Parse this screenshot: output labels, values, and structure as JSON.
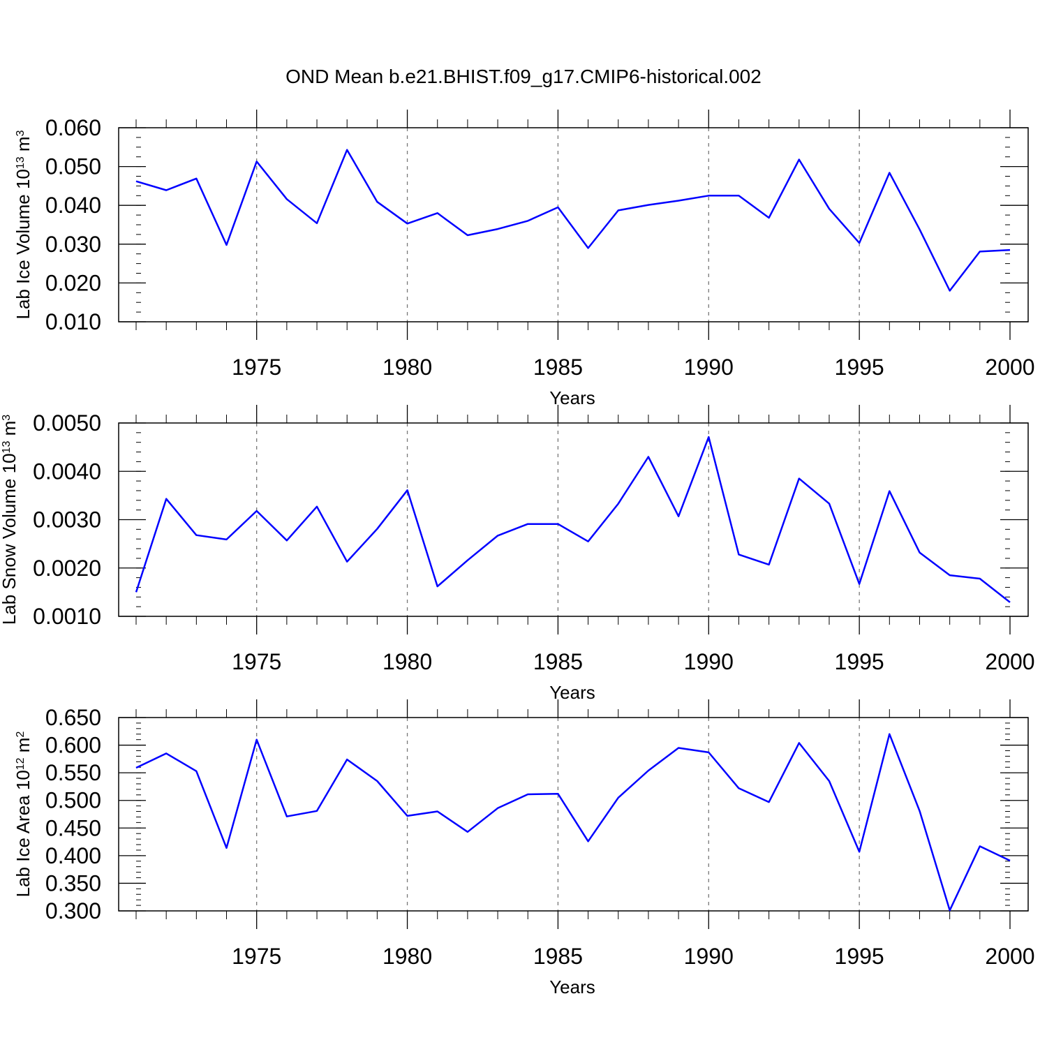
{
  "title": "OND Mean b.e21.BHIST.f09_g17.CMIP6-historical.002",
  "chart_data": [
    {
      "type": "line",
      "ylabel": {
        "text": "Lab Ice Volume 10",
        "exp": "13",
        "unit": " m",
        "unit_exp": "3"
      },
      "xlabel": "Years",
      "xlim": [
        1971,
        2000
      ],
      "ylim": [
        0.01,
        0.06
      ],
      "yticks": [
        0.01,
        0.02,
        0.03,
        0.04,
        0.05,
        0.06
      ],
      "ytick_labels": [
        "0.010",
        "0.020",
        "0.030",
        "0.040",
        "0.050",
        "0.060"
      ],
      "yminor_step": 0.0025,
      "xticks": [
        1975,
        1980,
        1985,
        1990,
        1995,
        2000
      ],
      "xtick_labels": [
        "1975",
        "1980",
        "1985",
        "1990",
        "1995",
        "2000"
      ],
      "grid": "dashed vertical at labeled years",
      "color": "#0000ff",
      "x": [
        1971,
        1972,
        1973,
        1974,
        1975,
        1976,
        1977,
        1978,
        1979,
        1980,
        1981,
        1982,
        1983,
        1984,
        1985,
        1986,
        1987,
        1988,
        1989,
        1990,
        1991,
        1992,
        1993,
        1994,
        1995,
        1996,
        1997,
        1998,
        1999,
        2000
      ],
      "y": [
        0.0462,
        0.0439,
        0.0469,
        0.0298,
        0.0513,
        0.0416,
        0.0354,
        0.0543,
        0.0409,
        0.0353,
        0.038,
        0.0323,
        0.0339,
        0.036,
        0.0395,
        0.029,
        0.0387,
        0.0401,
        0.0412,
        0.0425,
        0.0425,
        0.0368,
        0.0518,
        0.0391,
        0.0303,
        0.0484,
        0.0338,
        0.018,
        0.0281,
        0.0285
      ]
    },
    {
      "type": "line",
      "ylabel": {
        "text": "Lab Snow Volume 10",
        "exp": "13",
        "unit": " m",
        "unit_exp": "3"
      },
      "xlabel": "Years",
      "xlim": [
        1971,
        2000
      ],
      "ylim": [
        0.001,
        0.005
      ],
      "yticks": [
        0.001,
        0.002,
        0.003,
        0.004,
        0.005
      ],
      "ytick_labels": [
        "0.0010",
        "0.0020",
        "0.0030",
        "0.0040",
        "0.0050"
      ],
      "yminor_step": 0.0002,
      "xticks": [
        1975,
        1980,
        1985,
        1990,
        1995,
        2000
      ],
      "xtick_labels": [
        "1975",
        "1980",
        "1985",
        "1990",
        "1995",
        "2000"
      ],
      "grid": "dashed vertical at labeled years",
      "color": "#0000ff",
      "x": [
        1971,
        1972,
        1973,
        1974,
        1975,
        1976,
        1977,
        1978,
        1979,
        1980,
        1981,
        1982,
        1983,
        1984,
        1985,
        1986,
        1987,
        1988,
        1989,
        1990,
        1991,
        1992,
        1993,
        1994,
        1995,
        1996,
        1997,
        1998,
        1999,
        2000
      ],
      "y": [
        0.0015,
        0.00343,
        0.00268,
        0.00259,
        0.00318,
        0.00257,
        0.00327,
        0.00213,
        0.00281,
        0.00361,
        0.00162,
        0.00216,
        0.00267,
        0.00291,
        0.00291,
        0.00255,
        0.00333,
        0.0043,
        0.00307,
        0.00471,
        0.00228,
        0.00207,
        0.00385,
        0.00333,
        0.00167,
        0.00359,
        0.00232,
        0.00185,
        0.00178,
        0.00129
      ]
    },
    {
      "type": "line",
      "ylabel": {
        "text": "Lab Ice Area 10",
        "exp": "12",
        "unit": " m",
        "unit_exp": "2"
      },
      "xlabel": "Years",
      "xlim": [
        1971,
        2000
      ],
      "ylim": [
        0.3,
        0.65
      ],
      "yticks": [
        0.3,
        0.35,
        0.4,
        0.45,
        0.5,
        0.55,
        0.6,
        0.65
      ],
      "ytick_labels": [
        "0.300",
        "0.350",
        "0.400",
        "0.450",
        "0.500",
        "0.550",
        "0.600",
        "0.650"
      ],
      "yminor_step": 0.01,
      "xticks": [
        1975,
        1980,
        1985,
        1990,
        1995,
        2000
      ],
      "xtick_labels": [
        "1975",
        "1980",
        "1985",
        "1990",
        "1995",
        "2000"
      ],
      "grid": "dashed vertical at labeled years",
      "color": "#0000ff",
      "x": [
        1971,
        1972,
        1973,
        1974,
        1975,
        1976,
        1977,
        1978,
        1979,
        1980,
        1981,
        1982,
        1983,
        1984,
        1985,
        1986,
        1987,
        1988,
        1989,
        1990,
        1991,
        1992,
        1993,
        1994,
        1995,
        1996,
        1997,
        1998,
        1999,
        2000
      ],
      "y": [
        0.559,
        0.585,
        0.553,
        0.414,
        0.61,
        0.471,
        0.481,
        0.574,
        0.535,
        0.472,
        0.48,
        0.443,
        0.486,
        0.511,
        0.512,
        0.426,
        0.505,
        0.554,
        0.595,
        0.587,
        0.522,
        0.497,
        0.604,
        0.535,
        0.407,
        0.62,
        0.481,
        0.301,
        0.417,
        0.391
      ]
    }
  ]
}
